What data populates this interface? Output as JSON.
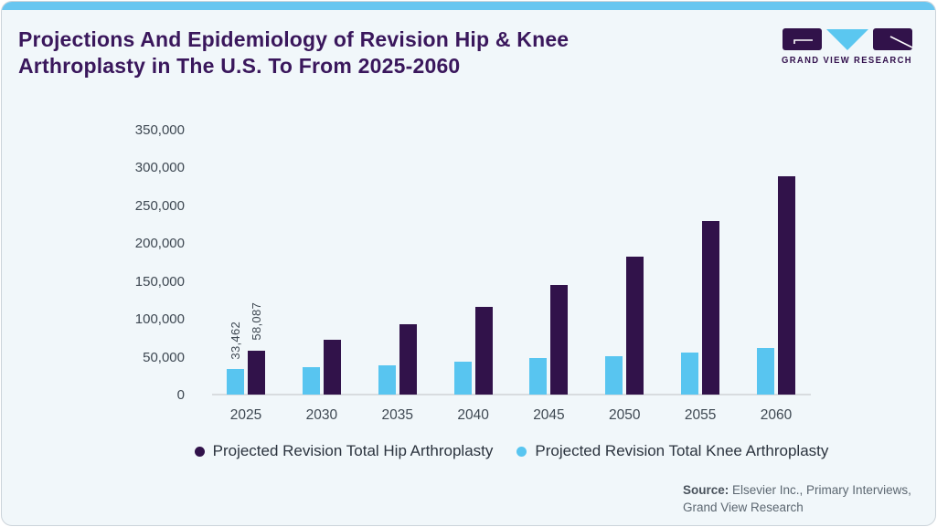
{
  "title": {
    "line1": "Projections And Epidemiology of Revision Hip & Knee",
    "line2": "Arthroplasty in The U.S. To From 2025-2060"
  },
  "logo": {
    "text": "GRAND VIEW RESEARCH"
  },
  "colors": {
    "accent_strip": "#68c6f0",
    "title_text": "#3a175c",
    "hip": "#31124a",
    "knee": "#58c5f0",
    "axis_text": "#3e4852",
    "legend_text": "#2b333e",
    "source_text": "#5c6771",
    "baseline": "#d8dcdf",
    "card_bg": "#f1f7fa"
  },
  "chart_data": {
    "type": "bar",
    "title": "Projections And Epidemiology of Revision Hip & Knee Arthroplasty in The U.S. To From 2025-2060",
    "categories": [
      "2025",
      "2030",
      "2035",
      "2040",
      "2045",
      "2050",
      "2055",
      "2060"
    ],
    "series": [
      {
        "name": "Projected Revision Total Knee Arthroplasty",
        "color_key": "knee",
        "values": [
          33462,
          36500,
          39000,
          43500,
          48000,
          50500,
          56000,
          62000
        ]
      },
      {
        "name": "Projected Revision Total Hip Arthroplasty",
        "color_key": "hip",
        "values": [
          58087,
          72500,
          93000,
          116000,
          145000,
          182000,
          229000,
          288000
        ]
      }
    ],
    "bar_labels": {
      "2025": [
        "33,462",
        "58,087"
      ]
    },
    "ylim": [
      0,
      350000
    ],
    "yticks": [
      0,
      50000,
      100000,
      150000,
      200000,
      250000,
      300000,
      350000
    ],
    "ytick_labels": [
      "0",
      "50,000",
      "100,000",
      "150,000",
      "200,000",
      "250,000",
      "300,000",
      "350,000"
    ],
    "grid": false,
    "legend_position": "bottom"
  },
  "legend": [
    {
      "label": "Projected Revision Total Hip Arthroplasty",
      "color_key": "hip"
    },
    {
      "label": "Projected Revision Total Knee Arthroplasty",
      "color_key": "knee"
    }
  ],
  "source": {
    "label": "Source:",
    "line1": "Elsevier Inc., Primary Interviews,",
    "line2": "Grand View Research"
  }
}
